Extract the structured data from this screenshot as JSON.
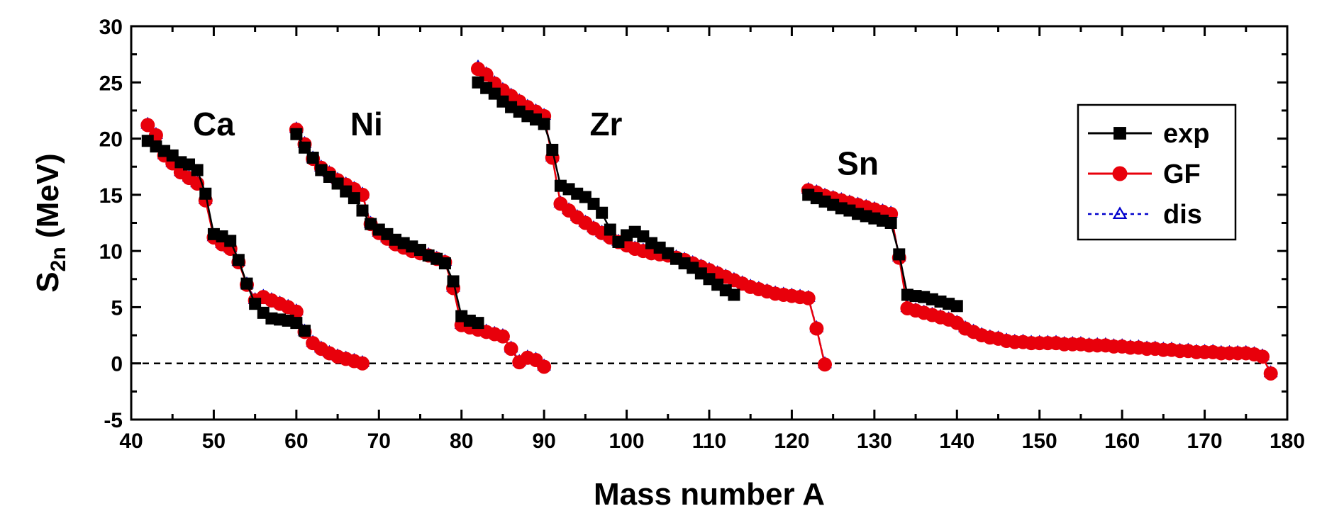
{
  "chart_data": {
    "type": "line",
    "xlabel": "Mass number A",
    "ylabel": "S",
    "ylabel_sub": "2n",
    "ylabel_unit": " (MeV)",
    "xlim": [
      40,
      180
    ],
    "ylim": [
      -5,
      30
    ],
    "xticks": [
      40,
      50,
      60,
      70,
      80,
      90,
      100,
      110,
      120,
      130,
      140,
      150,
      160,
      170,
      180
    ],
    "yticks": [
      -5,
      0,
      5,
      10,
      15,
      20,
      25,
      30
    ],
    "reference_line": {
      "y": 0,
      "style": "dashed"
    },
    "legend": {
      "position": "top-right",
      "entries": [
        "exp",
        "GF",
        "dis"
      ]
    },
    "colors": {
      "exp": "#000000",
      "GF": "#e8000b",
      "dis": "#0000cc"
    },
    "element_labels": [
      {
        "text": "Ca",
        "x": 50,
        "y": 20.3
      },
      {
        "text": "Ni",
        "x": 68.5,
        "y": 20.3
      },
      {
        "text": "Zr",
        "x": 97.5,
        "y": 20.3
      },
      {
        "text": "Sn",
        "x": 128,
        "y": 16.8
      }
    ],
    "series": [
      {
        "name": "exp",
        "marker": "square",
        "segments": [
          {
            "label": "Ca",
            "x": [
              42,
              43,
              44,
              45,
              46,
              47,
              48,
              49,
              50,
              51,
              52,
              53,
              54,
              55,
              56,
              57,
              58,
              59,
              60,
              61
            ],
            "y": [
              19.8,
              19.3,
              18.9,
              18.5,
              17.9,
              17.7,
              17.2,
              15.1,
              11.5,
              11.3,
              10.9,
              9.2,
              7.1,
              5.3,
              4.5,
              4.0,
              3.9,
              3.8,
              3.6,
              2.9
            ]
          },
          {
            "label": "Ni",
            "x": [
              60,
              61,
              62,
              63,
              64,
              65,
              66,
              67,
              68,
              69,
              70,
              71,
              72,
              73,
              74,
              75,
              76,
              77,
              78,
              79,
              80,
              81,
              82
            ],
            "y": [
              20.4,
              19.2,
              18.3,
              17.2,
              16.6,
              16.0,
              15.3,
              14.7,
              13.6,
              12.4,
              11.9,
              11.5,
              11.0,
              10.7,
              10.4,
              10.1,
              9.6,
              9.3,
              8.9,
              7.3,
              4.2,
              3.8,
              3.6
            ]
          },
          {
            "label": "Zr",
            "x": [
              82,
              83,
              84,
              85,
              86,
              87,
              88,
              89,
              90,
              91,
              92,
              93,
              94,
              95,
              96,
              97,
              98,
              99,
              100,
              101,
              102,
              103,
              104,
              105,
              106,
              107,
              108,
              109,
              110,
              111,
              112,
              113
            ],
            "y": [
              25.0,
              24.5,
              24.0,
              23.3,
              22.8,
              22.4,
              22.0,
              21.7,
              21.3,
              19.0,
              15.8,
              15.5,
              15.1,
              14.8,
              14.2,
              13.4,
              11.9,
              10.8,
              11.4,
              11.7,
              11.3,
              10.7,
              10.3,
              9.8,
              9.3,
              8.9,
              8.5,
              8.0,
              7.5,
              7.0,
              6.5,
              6.1
            ]
          },
          {
            "label": "Sn",
            "x": [
              122,
              123,
              124,
              125,
              126,
              127,
              128,
              129,
              130,
              131,
              132,
              133,
              134,
              135,
              136,
              137,
              138,
              139,
              140
            ],
            "y": [
              15.0,
              14.7,
              14.4,
              14.1,
              13.8,
              13.6,
              13.3,
              13.1,
              12.9,
              12.7,
              12.5,
              9.7,
              6.1,
              6.0,
              5.9,
              5.7,
              5.5,
              5.3,
              5.1
            ]
          }
        ]
      },
      {
        "name": "GF",
        "marker": "circle",
        "segments": [
          {
            "label": "Ca",
            "x": [
              42,
              43,
              44,
              45,
              46,
              47,
              48,
              49,
              50,
              51,
              52,
              53,
              54,
              55,
              56,
              57,
              58,
              59,
              60,
              61,
              62,
              63,
              64,
              65,
              66,
              67,
              68
            ],
            "y": [
              21.2,
              20.3,
              18.5,
              17.8,
              17.0,
              16.5,
              16.0,
              14.5,
              11.2,
              10.6,
              10.2,
              9.0,
              7.0,
              5.6,
              5.9,
              5.6,
              5.3,
              5.0,
              4.6,
              2.8,
              1.8,
              1.3,
              0.9,
              0.6,
              0.4,
              0.2,
              0.0
            ]
          },
          {
            "label": "Ni",
            "x": [
              60,
              61,
              62,
              63,
              64,
              65,
              66,
              67,
              68,
              69,
              70,
              71,
              72,
              73,
              74,
              75,
              76,
              77,
              78,
              79,
              80,
              81,
              82,
              83,
              84,
              85,
              86,
              87,
              88,
              89,
              90
            ],
            "y": [
              20.8,
              19.5,
              18.2,
              17.4,
              16.9,
              16.3,
              15.9,
              15.5,
              15.0,
              12.4,
              11.6,
              11.1,
              10.6,
              10.3,
              10.0,
              9.8,
              9.6,
              9.3,
              9.0,
              6.7,
              3.4,
              3.2,
              3.0,
              2.8,
              2.6,
              2.4,
              1.3,
              0.1,
              0.5,
              0.3,
              -0.3
            ]
          },
          {
            "label": "Zr",
            "x": [
              82,
              83,
              84,
              85,
              86,
              87,
              88,
              89,
              90,
              91,
              92,
              93,
              94,
              95,
              96,
              97,
              98,
              99,
              100,
              101,
              102,
              103,
              104,
              105,
              106,
              107,
              108,
              109,
              110,
              111,
              112,
              113,
              114,
              115,
              116,
              117,
              118,
              119,
              120,
              121,
              122,
              123,
              124
            ],
            "y": [
              26.2,
              25.7,
              24.9,
              24.3,
              23.8,
              23.3,
              22.8,
              22.4,
              22.0,
              18.3,
              14.2,
              13.6,
              13.0,
              12.5,
              12.0,
              11.6,
              11.2,
              10.8,
              10.5,
              10.2,
              10.0,
              9.8,
              9.7,
              9.6,
              9.4,
              9.2,
              8.9,
              8.6,
              8.3,
              8.0,
              7.7,
              7.4,
              7.1,
              6.8,
              6.6,
              6.4,
              6.2,
              6.1,
              6.0,
              5.9,
              5.8,
              3.1,
              -0.1
            ]
          },
          {
            "label": "Sn",
            "x": [
              122,
              123,
              124,
              125,
              126,
              127,
              128,
              129,
              130,
              131,
              132,
              133,
              134,
              135,
              136,
              137,
              138,
              139,
              140,
              141,
              142,
              143,
              144,
              145,
              146,
              147,
              148,
              149,
              150,
              151,
              152,
              153,
              154,
              155,
              156,
              157,
              158,
              159,
              160,
              161,
              162,
              163,
              164,
              165,
              166,
              167,
              168,
              169,
              170,
              171,
              172,
              173,
              174,
              175,
              176,
              177,
              178
            ],
            "y": [
              15.4,
              15.2,
              14.9,
              14.7,
              14.5,
              14.3,
              14.1,
              13.9,
              13.7,
              13.5,
              13.3,
              9.4,
              4.9,
              4.7,
              4.5,
              4.3,
              4.1,
              3.9,
              3.6,
              3.1,
              2.8,
              2.5,
              2.3,
              2.2,
              2.0,
              1.9,
              1.9,
              1.8,
              1.8,
              1.8,
              1.8,
              1.7,
              1.7,
              1.7,
              1.6,
              1.6,
              1.6,
              1.5,
              1.5,
              1.4,
              1.4,
              1.3,
              1.3,
              1.2,
              1.2,
              1.1,
              1.1,
              1.0,
              1.0,
              1.0,
              0.9,
              0.9,
              0.9,
              0.9,
              0.8,
              0.6,
              -0.9
            ]
          }
        ]
      },
      {
        "name": "dis",
        "marker": "triangle",
        "segments": [
          {
            "label": "Ca",
            "x": [
              42,
              43,
              44,
              45,
              46,
              47,
              48,
              49,
              50,
              51,
              52,
              53,
              54,
              55,
              56,
              57,
              58,
              59,
              60,
              61,
              62,
              63,
              64,
              65,
              66,
              67,
              68
            ],
            "y": [
              21.3,
              20.4,
              18.6,
              17.9,
              17.1,
              16.6,
              16.1,
              14.6,
              11.3,
              10.7,
              10.3,
              9.1,
              7.1,
              5.7,
              6.0,
              5.7,
              5.4,
              5.1,
              4.7,
              2.9,
              1.9,
              1.4,
              1.0,
              0.7,
              0.5,
              0.3,
              0.1
            ]
          },
          {
            "label": "Ni",
            "x": [
              60,
              61,
              62,
              63,
              64,
              65,
              66,
              67,
              68,
              69,
              70,
              71,
              72,
              73,
              74,
              75,
              76,
              77,
              78,
              79,
              80,
              81,
              82,
              83,
              84,
              85,
              86,
              87,
              88,
              89,
              90
            ],
            "y": [
              20.9,
              19.6,
              18.3,
              17.5,
              17.0,
              16.4,
              16.0,
              15.6,
              15.1,
              12.5,
              11.7,
              11.2,
              10.7,
              10.4,
              10.1,
              9.9,
              9.7,
              9.4,
              9.1,
              6.8,
              3.5,
              3.3,
              3.1,
              2.9,
              2.7,
              2.5,
              1.4,
              0.2,
              0.6,
              0.4,
              -0.2
            ]
          },
          {
            "label": "Zr",
            "x": [
              82,
              83,
              84,
              85,
              86,
              87,
              88,
              89,
              90,
              91,
              92,
              93,
              94,
              95,
              96,
              97,
              98,
              99,
              100,
              101,
              102,
              103,
              104,
              105,
              106,
              107,
              108,
              109,
              110,
              111,
              112,
              113,
              114,
              115,
              116,
              117,
              118,
              119,
              120,
              121,
              122,
              123,
              124
            ],
            "y": [
              26.4,
              25.8,
              25.0,
              24.4,
              23.9,
              23.4,
              22.9,
              22.5,
              22.1,
              18.4,
              14.3,
              13.7,
              13.1,
              12.6,
              12.1,
              11.7,
              11.3,
              10.9,
              10.6,
              10.3,
              10.1,
              9.9,
              9.8,
              9.7,
              9.5,
              9.3,
              9.0,
              8.7,
              8.4,
              8.1,
              7.8,
              7.5,
              7.2,
              6.9,
              6.7,
              6.5,
              6.3,
              6.2,
              6.1,
              6.0,
              5.9,
              3.2,
              0.0
            ]
          },
          {
            "label": "Sn",
            "x": [
              122,
              123,
              124,
              125,
              126,
              127,
              128,
              129,
              130,
              131,
              132,
              133,
              134,
              135,
              136,
              137,
              138,
              139,
              140,
              141,
              142,
              143,
              144,
              145,
              146,
              147,
              148,
              149,
              150,
              151,
              152,
              153,
              154,
              155,
              156,
              157,
              158,
              159,
              160,
              161,
              162,
              163,
              164,
              165,
              166,
              167,
              168,
              169,
              170,
              171,
              172,
              173,
              174,
              175,
              176,
              177,
              178
            ],
            "y": [
              15.5,
              15.3,
              15.0,
              14.8,
              14.6,
              14.4,
              14.2,
              14.0,
              13.8,
              13.6,
              13.4,
              9.5,
              5.0,
              4.8,
              4.6,
              4.4,
              4.2,
              4.0,
              3.7,
              3.2,
              2.9,
              2.6,
              2.4,
              2.3,
              2.1,
              2.0,
              2.0,
              1.9,
              1.9,
              1.9,
              1.9,
              1.8,
              1.8,
              1.8,
              1.7,
              1.7,
              1.7,
              1.6,
              1.6,
              1.5,
              1.5,
              1.4,
              1.4,
              1.3,
              1.3,
              1.2,
              1.2,
              1.1,
              1.1,
              1.1,
              1.0,
              1.0,
              1.0,
              1.0,
              0.9,
              0.7,
              -0.8
            ]
          }
        ]
      }
    ]
  }
}
